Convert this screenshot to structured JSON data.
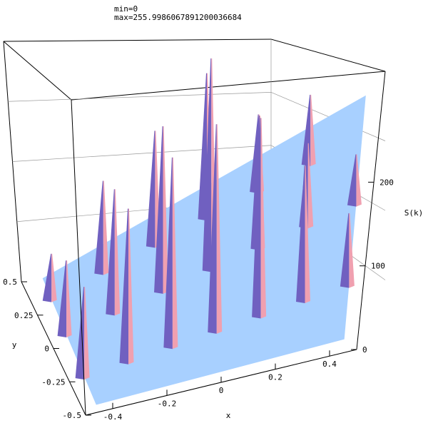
{
  "header": {
    "min_label": "min=0",
    "max_label": "max=255.9986067891200036684"
  },
  "chart_data": {
    "type": "surface3d",
    "xlabel": "x",
    "ylabel": "y",
    "zlabel": "S(k)",
    "xlim": [
      -0.5,
      0.5
    ],
    "ylim": [
      -0.5,
      0.5
    ],
    "zlim": [
      0,
      256
    ],
    "x_ticks": [
      "-0.4",
      "-0.2",
      "0",
      "0.2",
      "0.4"
    ],
    "y_ticks": [
      "-0.5",
      "-0.25",
      "0",
      "0.25",
      "0.5"
    ],
    "z_ticks": [
      "0",
      "100",
      "200"
    ],
    "min": 0,
    "max": 255.99860678912,
    "base_color": "#a8d0ff",
    "peak_colors": [
      "#7060c0",
      "#f0a0b0"
    ],
    "peaks": [
      {
        "x": -0.45,
        "y": 0.3,
        "z": 60
      },
      {
        "x": -0.45,
        "y": 0.05,
        "z": 90
      },
      {
        "x": -0.45,
        "y": -0.25,
        "z": 100
      },
      {
        "x": -0.3,
        "y": 0.3,
        "z": 120
      },
      {
        "x": -0.3,
        "y": 0.05,
        "z": 150
      },
      {
        "x": -0.3,
        "y": -0.25,
        "z": 170
      },
      {
        "x": -0.15,
        "y": 0.3,
        "z": 150
      },
      {
        "x": -0.15,
        "y": 0.05,
        "z": 200
      },
      {
        "x": -0.15,
        "y": -0.25,
        "z": 210
      },
      {
        "x": 0.0,
        "y": 0.3,
        "z": 190
      },
      {
        "x": 0.0,
        "y": 0.05,
        "z": 256
      },
      {
        "x": 0.0,
        "y": -0.25,
        "z": 230
      },
      {
        "x": 0.15,
        "y": 0.3,
        "z": 100
      },
      {
        "x": 0.15,
        "y": 0.05,
        "z": 160
      },
      {
        "x": 0.15,
        "y": -0.25,
        "z": 220
      },
      {
        "x": 0.3,
        "y": 0.3,
        "z": 90
      },
      {
        "x": 0.3,
        "y": 0.05,
        "z": 100
      },
      {
        "x": 0.3,
        "y": -0.25,
        "z": 150
      },
      {
        "x": 0.45,
        "y": 0.05,
        "z": 60
      },
      {
        "x": 0.45,
        "y": -0.25,
        "z": 80
      }
    ]
  }
}
